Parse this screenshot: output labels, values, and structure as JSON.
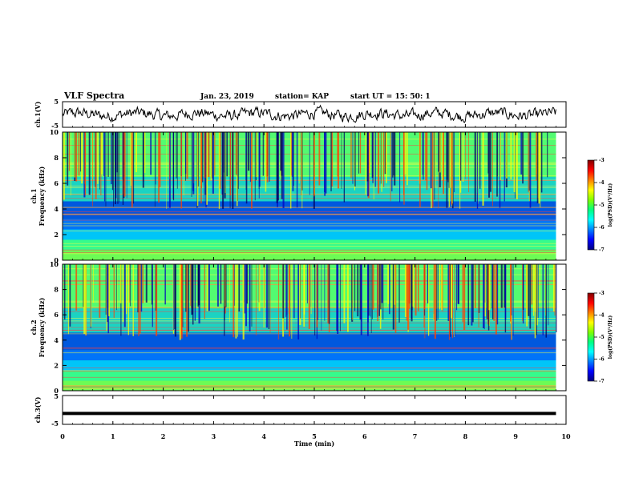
{
  "header": {
    "title": "VLF Spectra",
    "date": "Jan. 23, 2019",
    "station": "station= KAP",
    "start": "start  UT =   15: 50: 1"
  },
  "chart_data": [
    {
      "type": "line",
      "panel": "ch1-waveform",
      "ylabel": "ch.1(V)",
      "ylim": [
        -5,
        5
      ],
      "ytick_labels": [
        "5",
        "-5"
      ],
      "x_range_min": [
        0,
        9.8
      ],
      "approx_level_v": 0,
      "approx_amplitude_v": 2.2,
      "color": "#000000"
    },
    {
      "type": "heatmap",
      "panel": "ch1-spectrogram",
      "ylabel": "ch.1\nFrequency (kHz)",
      "ylim": [
        0,
        10
      ],
      "ytick_labels": [
        "0",
        "2",
        "4",
        "6",
        "8",
        "10"
      ],
      "x_range_min": [
        0,
        9.8
      ],
      "colorbar": {
        "label": "log(PSD)(V²/Hz)",
        "range": [
          -7,
          -3
        ],
        "tick_labels": [
          "-3",
          "-4",
          "-5",
          "-6",
          "-7"
        ]
      }
    },
    {
      "type": "heatmap",
      "panel": "ch2-spectrogram",
      "ylabel": "ch.2\nFrequency (kHz)",
      "ylim": [
        0,
        10
      ],
      "ytick_labels": [
        "0",
        "2",
        "4",
        "6",
        "8",
        "10"
      ],
      "x_range_min": [
        0,
        9.8
      ],
      "colorbar": {
        "label": "log(PSD)(V²/Hz)",
        "range": [
          -7,
          -3
        ],
        "tick_labels": [
          "-3",
          "-4",
          "-5",
          "-6",
          "-7"
        ]
      }
    },
    {
      "type": "line",
      "panel": "ch3-waveform",
      "ylabel": "ch.3(V)",
      "ylim": [
        -5,
        5
      ],
      "ytick_labels": [
        "5",
        "-5"
      ],
      "x_range_min": [
        0,
        9.8
      ],
      "level_v": -1.2,
      "color": "#000000"
    }
  ],
  "xaxis": {
    "label": "Time  (min)",
    "range": [
      0,
      10
    ],
    "tick_labels": [
      "0",
      "1",
      "2",
      "3",
      "4",
      "5",
      "6",
      "7",
      "8",
      "9",
      "10"
    ]
  },
  "colors": {
    "axis": "#000000",
    "colormap": [
      "#000080",
      "#0000ff",
      "#0080ff",
      "#00ffff",
      "#00ff80",
      "#80ff00",
      "#ffff00",
      "#ff8000",
      "#ff0000",
      "#800000"
    ]
  }
}
